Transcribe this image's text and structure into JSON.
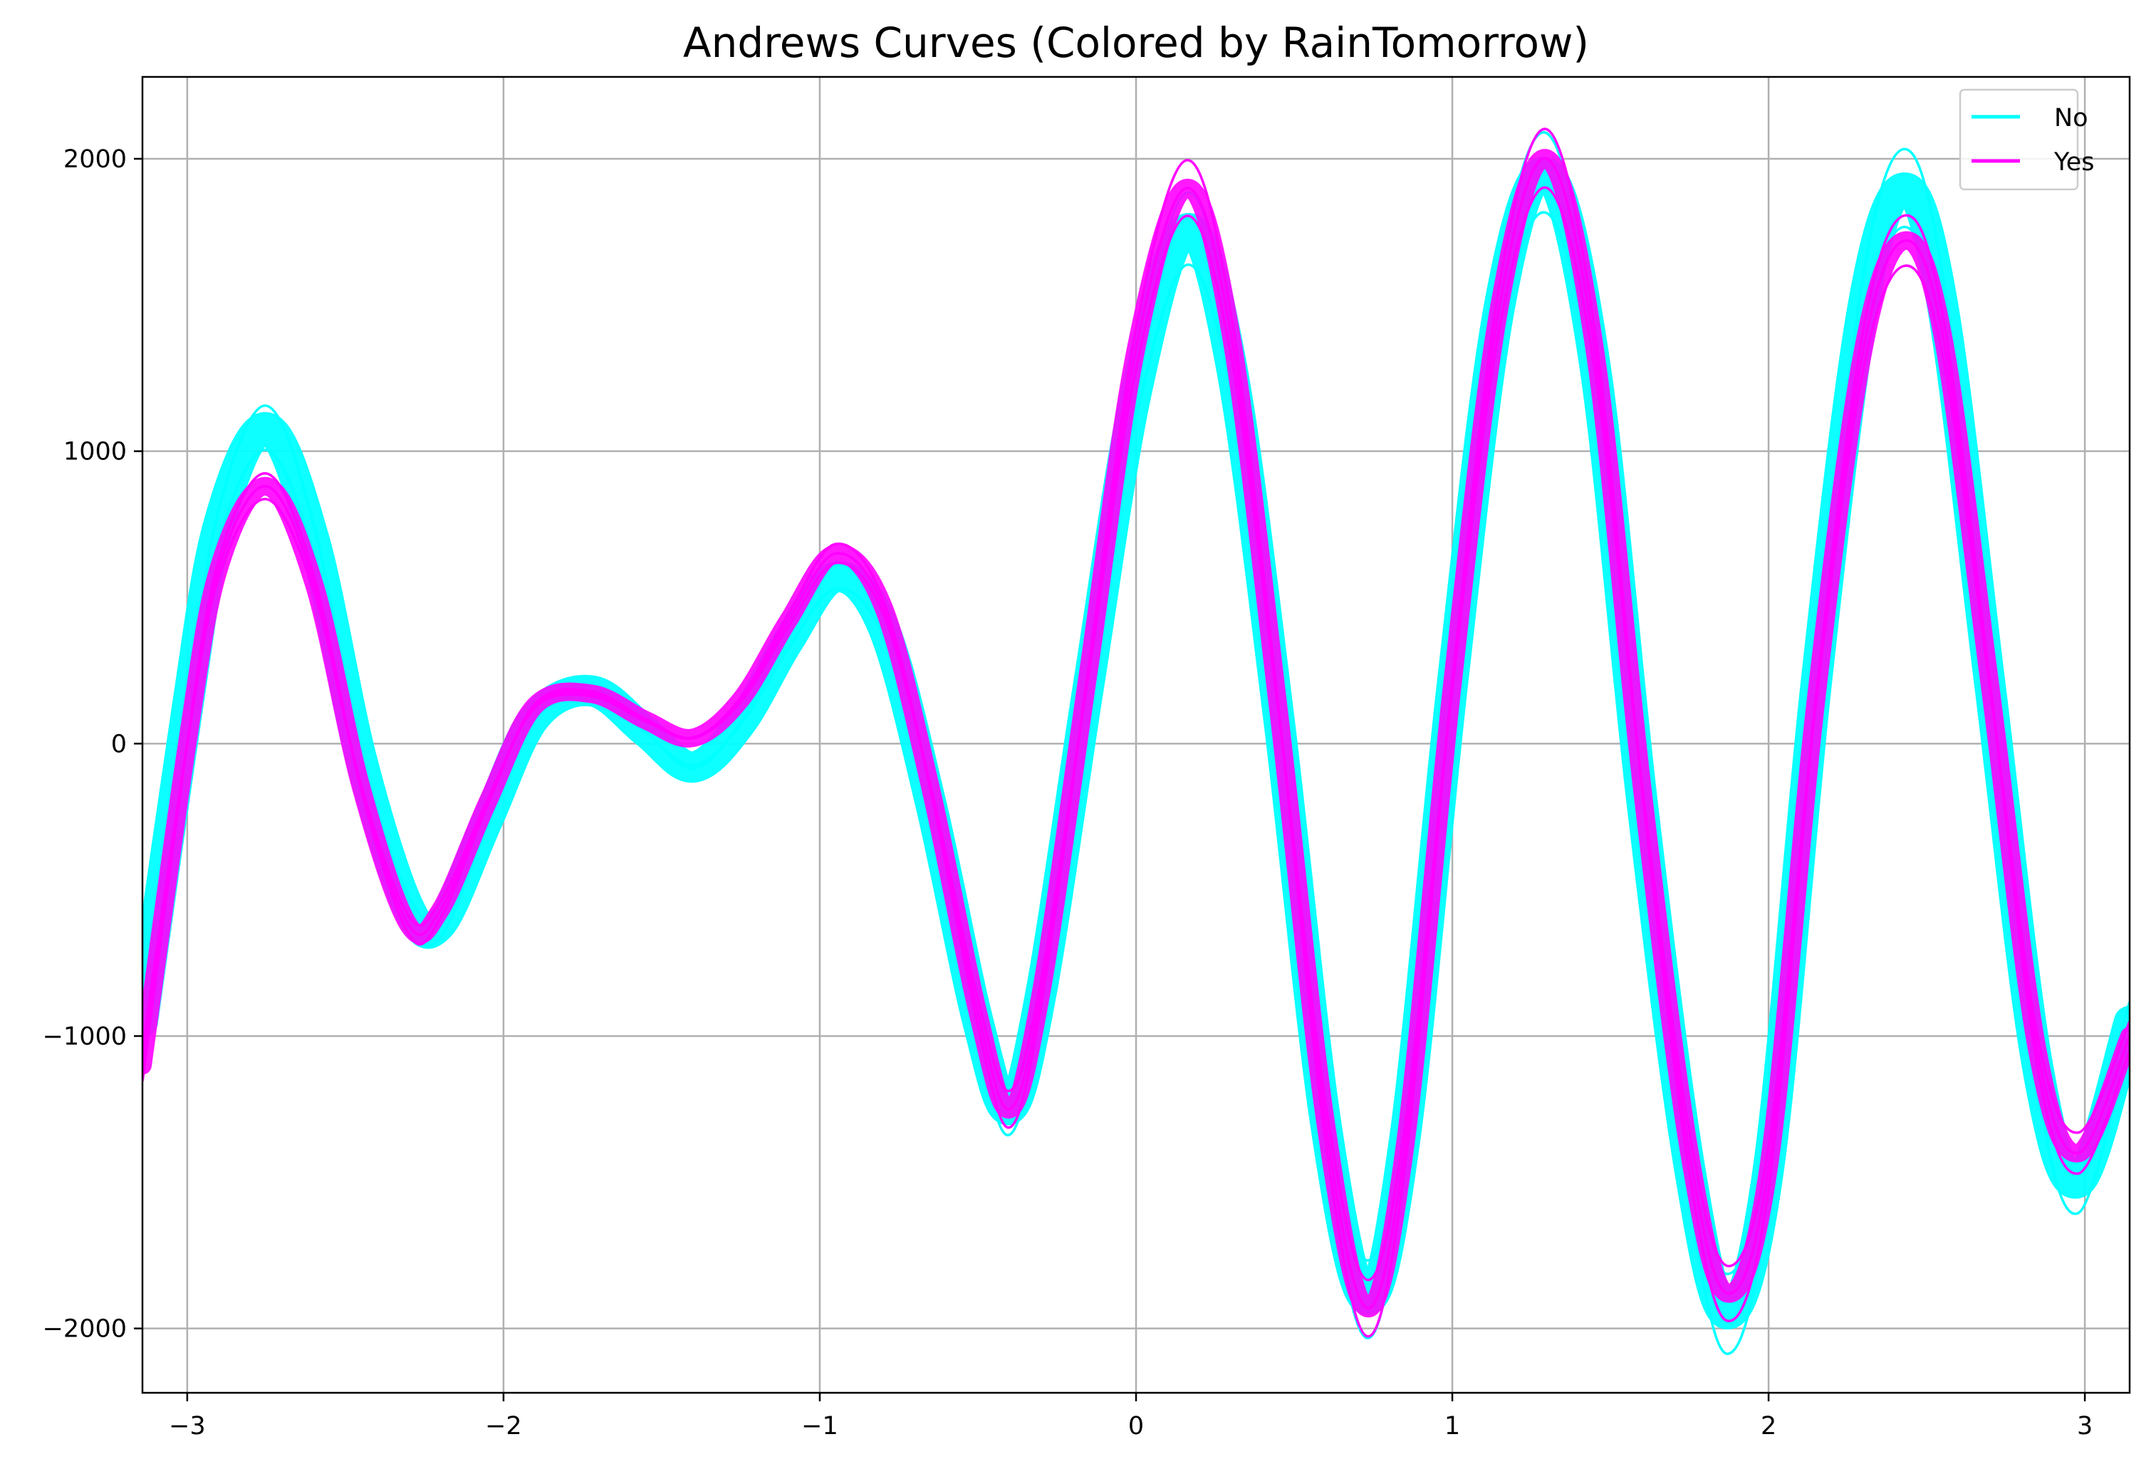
{
  "chart_data": {
    "type": "line",
    "title": "Andrews Curves (Colored by RainTomorrow)",
    "xlabel": "",
    "ylabel": "",
    "xlim": [
      -3.1416,
      3.1416
    ],
    "ylim": [
      -2220,
      2280
    ],
    "x_ticks": [
      -3,
      -2,
      -1,
      0,
      1,
      2,
      3
    ],
    "x_tick_labels": [
      "−3",
      "−2",
      "−1",
      "0",
      "1",
      "2",
      "3"
    ],
    "y_ticks": [
      -2000,
      -1000,
      0,
      1000,
      2000
    ],
    "y_tick_labels": [
      "−2000",
      "−1000",
      "0",
      "1000",
      "2000"
    ],
    "grid": true,
    "legend_position": "top-right",
    "series": [
      {
        "name": "No",
        "color": "#00ffff",
        "x": [
          -3.1416,
          -3.0,
          -2.9,
          -2.75,
          -2.6,
          -2.45,
          -2.3,
          -2.2,
          -2.05,
          -1.9,
          -1.72,
          -1.55,
          -1.4,
          -1.25,
          -1.1,
          -0.95,
          -0.8,
          -0.65,
          -0.5,
          -0.4,
          -0.3,
          -0.15,
          0.0,
          0.16,
          0.3,
          0.45,
          0.6,
          0.73,
          0.85,
          1.0,
          1.15,
          1.3,
          1.45,
          1.6,
          1.75,
          1.87,
          2.0,
          2.15,
          2.3,
          2.43,
          2.55,
          2.7,
          2.85,
          2.98,
          3.1416
        ],
        "values": [
          -950,
          120,
          750,
          1080,
          700,
          -50,
          -560,
          -620,
          -260,
          90,
          180,
          40,
          -80,
          70,
          350,
          570,
          400,
          -200,
          -950,
          -1250,
          -850,
          200,
          1200,
          1760,
          1300,
          100,
          -1300,
          -1900,
          -1350,
          200,
          1500,
          1950,
          1300,
          -200,
          -1450,
          -1950,
          -1450,
          200,
          1500,
          1900,
          1500,
          200,
          -1100,
          -1500,
          -950
        ]
      },
      {
        "name": "Yes",
        "color": "#ff00ff",
        "x": [
          -3.1416,
          -3.0,
          -2.9,
          -2.75,
          -2.6,
          -2.45,
          -2.3,
          -2.2,
          -2.05,
          -1.9,
          -1.72,
          -1.55,
          -1.4,
          -1.25,
          -1.1,
          -0.95,
          -0.8,
          -0.65,
          -0.5,
          -0.4,
          -0.3,
          -0.15,
          0.0,
          0.16,
          0.3,
          0.45,
          0.6,
          0.73,
          0.85,
          1.0,
          1.15,
          1.3,
          1.45,
          1.6,
          1.75,
          1.87,
          2.0,
          2.15,
          2.3,
          2.43,
          2.55,
          2.7,
          2.85,
          2.98,
          3.1416
        ],
        "values": [
          -1100,
          0,
          600,
          880,
          550,
          -150,
          -620,
          -570,
          -200,
          130,
          170,
          80,
          20,
          150,
          420,
          650,
          470,
          -150,
          -920,
          -1250,
          -850,
          250,
          1350,
          1900,
          1400,
          120,
          -1300,
          -1930,
          -1380,
          200,
          1500,
          2000,
          1350,
          -150,
          -1400,
          -1880,
          -1450,
          150,
          1350,
          1720,
          1400,
          200,
          -1050,
          -1400,
          -1000
        ]
      }
    ]
  }
}
